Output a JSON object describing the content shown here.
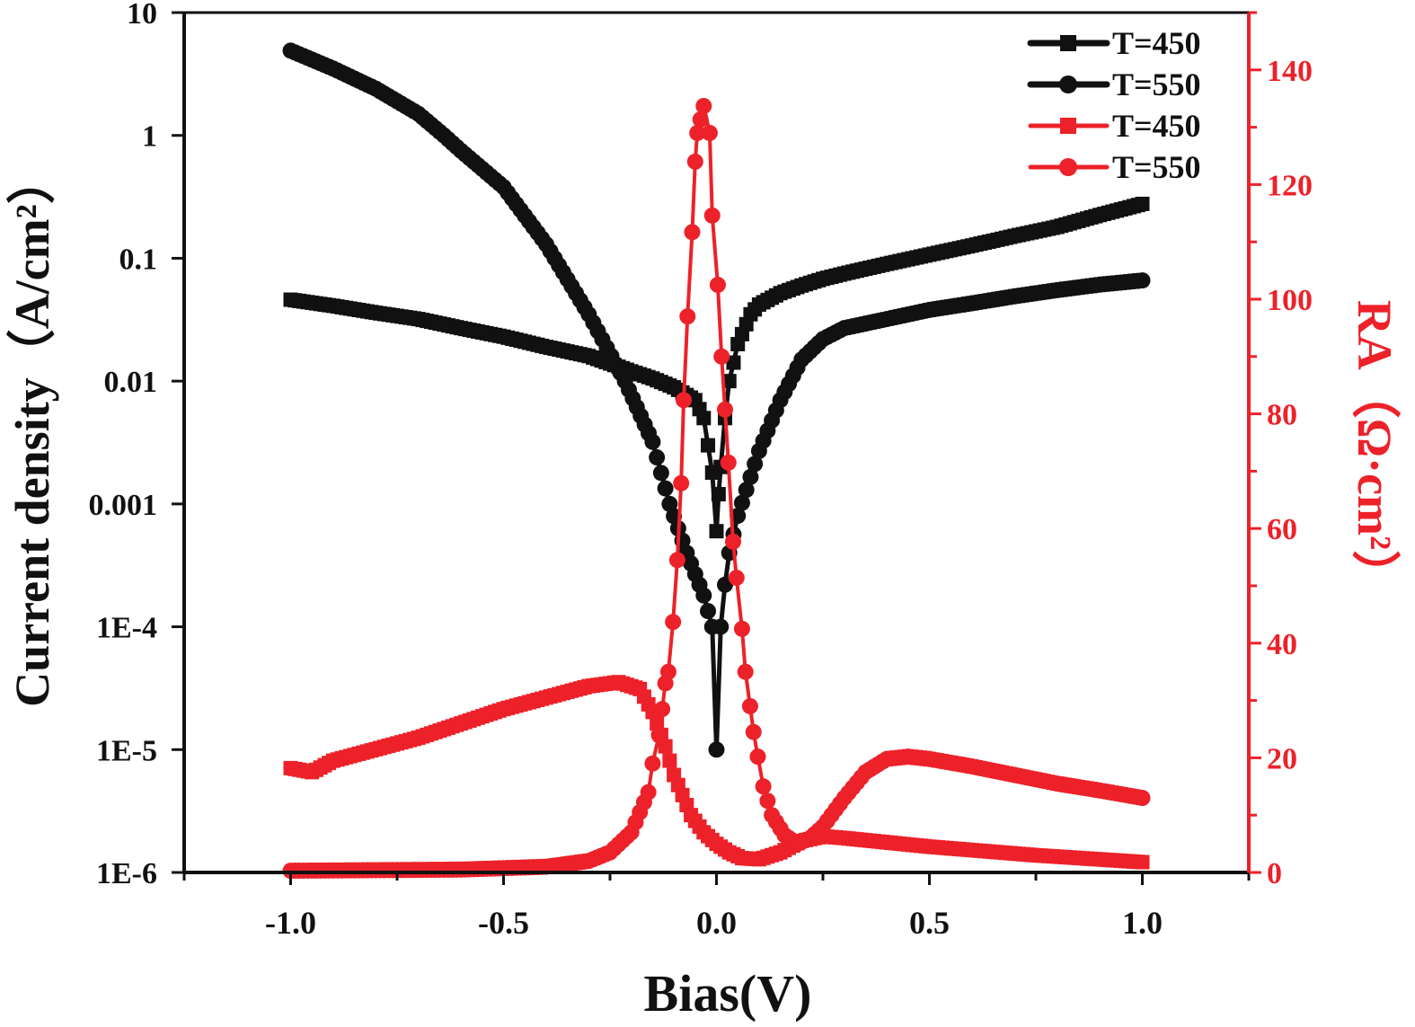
{
  "chart_data": {
    "type": "line",
    "title": "",
    "xlabel": "Bias(V)",
    "ylabel_left": "Current density（A/cm²）",
    "ylabel_right": "RA（Ω·cm²）",
    "xlim": [
      -1.25,
      1.25
    ],
    "ylim_left": [
      1e-06,
      10
    ],
    "ylim_right": [
      0,
      150
    ],
    "left_scale": "log",
    "right_scale": "linear",
    "grid": false,
    "legend_position": "top-right",
    "x_ticks": [
      -1.0,
      -0.5,
      0.0,
      0.5,
      1.0
    ],
    "x_tick_labels": [
      "-1.0",
      "-0.5",
      "0.0",
      "0.5",
      "1.0"
    ],
    "left_ticks": [
      10,
      1,
      0.1,
      0.01,
      0.001,
      0.0001,
      1e-05,
      1e-06
    ],
    "left_tick_labels": [
      "10",
      "1",
      "0.1",
      "0.01",
      "0.001",
      "1E-4",
      "1E-5",
      "1E-6"
    ],
    "right_ticks": [
      0,
      20,
      40,
      60,
      80,
      100,
      120,
      140
    ],
    "right_tick_labels": [
      "0",
      "20",
      "40",
      "60",
      "80",
      "100",
      "120",
      "140"
    ],
    "colors": {
      "black": "#111111",
      "red": "#ED2129"
    },
    "series": [
      {
        "name": "T=450",
        "axis": "left",
        "color": "#111111",
        "marker": "square",
        "x": [
          -1.0,
          -0.9,
          -0.8,
          -0.7,
          -0.6,
          -0.5,
          -0.4,
          -0.3,
          -0.25,
          -0.2,
          -0.15,
          -0.1,
          -0.05,
          -0.03,
          -0.01,
          0.0,
          0.005,
          0.01,
          0.02,
          0.03,
          0.05,
          0.08,
          0.1,
          0.15,
          0.2,
          0.25,
          0.3,
          0.4,
          0.5,
          0.6,
          0.7,
          0.8,
          0.9,
          1.0
        ],
        "y": [
          0.046,
          0.041,
          0.036,
          0.032,
          0.027,
          0.023,
          0.019,
          0.016,
          0.0139,
          0.012,
          0.0105,
          0.0089,
          0.007,
          0.005,
          0.0018,
          0.0006,
          0.0012,
          0.002,
          0.005,
          0.01,
          0.02,
          0.035,
          0.042,
          0.052,
          0.06,
          0.068,
          0.075,
          0.09,
          0.107,
          0.127,
          0.152,
          0.18,
          0.225,
          0.277
        ]
      },
      {
        "name": "T=550",
        "axis": "left",
        "color": "#111111",
        "marker": "circle",
        "x": [
          -1.0,
          -0.9,
          -0.8,
          -0.7,
          -0.64,
          -0.6,
          -0.5,
          -0.4,
          -0.38,
          -0.3,
          -0.215,
          -0.15,
          -0.11,
          -0.07,
          -0.03,
          -0.01,
          0.0,
          0.01,
          0.02,
          0.03,
          0.05,
          0.1,
          0.15,
          0.2,
          0.25,
          0.3,
          0.4,
          0.5,
          0.6,
          0.7,
          0.8,
          0.9,
          1.0
        ],
        "y": [
          4.9,
          3.5,
          2.4,
          1.5,
          1.0,
          0.75,
          0.38,
          0.13,
          0.1,
          0.035,
          0.01,
          0.0032,
          0.001,
          0.0004,
          0.00018,
          0.0001,
          1e-05,
          0.0001,
          0.00022,
          0.0004,
          0.0008,
          0.0027,
          0.007,
          0.015,
          0.022,
          0.027,
          0.032,
          0.038,
          0.043,
          0.049,
          0.055,
          0.061,
          0.066
        ]
      },
      {
        "name": "T=450",
        "axis": "right",
        "color": "#ED2129",
        "marker": "square",
        "x": [
          -1.0,
          -0.95,
          -0.9,
          -0.8,
          -0.7,
          -0.6,
          -0.5,
          -0.4,
          -0.3,
          -0.23,
          -0.18,
          -0.15,
          -0.12,
          -0.1,
          -0.06,
          -0.03,
          0.0,
          0.03,
          0.06,
          0.1,
          0.15,
          0.2,
          0.25,
          0.3,
          0.5,
          0.75,
          1.0
        ],
        "y": [
          18.2,
          17.5,
          19.5,
          21.5,
          23.5,
          26,
          28.5,
          30.5,
          32.5,
          33.2,
          32,
          28,
          22,
          17,
          10,
          7,
          5,
          3.5,
          2.5,
          2.3,
          3.5,
          5.5,
          6.3,
          6,
          4.5,
          3,
          1.8
        ]
      },
      {
        "name": "T=550",
        "axis": "right",
        "color": "#ED2129",
        "marker": "circle",
        "x": [
          -1.0,
          -0.8,
          -0.6,
          -0.4,
          -0.3,
          -0.25,
          -0.2,
          -0.16,
          -0.15,
          -0.135,
          -0.12,
          -0.113,
          -0.102,
          -0.092,
          -0.083,
          -0.077,
          -0.068,
          -0.057,
          -0.05,
          -0.045,
          -0.03,
          -0.016,
          -0.01,
          0.003,
          0.012,
          0.028,
          0.039,
          0.047,
          0.06,
          0.068,
          0.079,
          0.087,
          0.097,
          0.11,
          0.13,
          0.16,
          0.19,
          0.22,
          0.25,
          0.3,
          0.35,
          0.4,
          0.45,
          0.5,
          0.6,
          0.7,
          0.8,
          0.9,
          1.0
        ],
        "y": [
          0.3,
          0.4,
          0.5,
          1.0,
          2.0,
          3.5,
          7,
          14,
          19,
          24,
          33,
          35,
          43.7,
          54.5,
          67.9,
          82.4,
          97,
          111.7,
          124,
          129,
          133.7,
          129,
          114.6,
          102.5,
          90,
          71.5,
          57.7,
          51.4,
          42.5,
          35,
          29,
          24.5,
          20.2,
          15,
          10,
          6.5,
          5,
          6,
          8,
          13,
          17.5,
          19.8,
          20.2,
          19.8,
          18.5,
          17,
          15.5,
          14.3,
          13
        ]
      }
    ]
  }
}
